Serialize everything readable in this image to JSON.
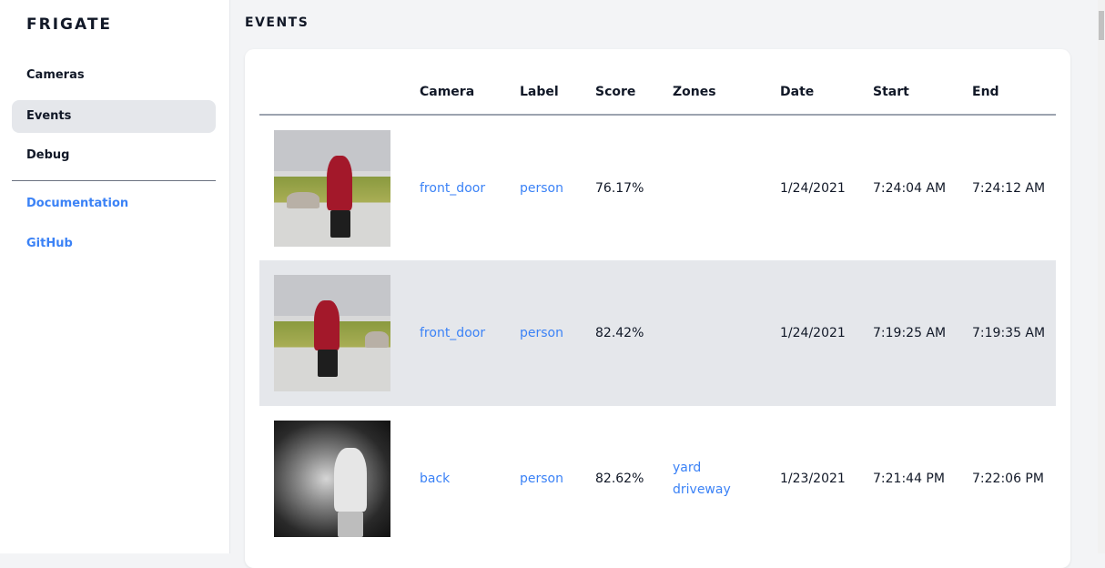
{
  "sidebar": {
    "brand": "FRIGATE",
    "items": [
      {
        "label": "Cameras"
      },
      {
        "label": "Events",
        "active": true
      },
      {
        "label": "Debug"
      }
    ],
    "links": [
      {
        "label": "Documentation"
      },
      {
        "label": "GitHub"
      }
    ]
  },
  "page": {
    "title": "EVENTS"
  },
  "table": {
    "headers": [
      "",
      "Camera",
      "Label",
      "Score",
      "Zones",
      "Date",
      "Start",
      "End"
    ],
    "rows": [
      {
        "camera": "front_door",
        "label": "person",
        "score": "76.17%",
        "zones": [
          "",
          ""
        ],
        "date": "1/24/2021",
        "start": "7:24:04 AM",
        "end": "7:24:12 AM"
      },
      {
        "camera": "front_door",
        "label": "person",
        "score": "82.42%",
        "zones": [
          "",
          ""
        ],
        "date": "1/24/2021",
        "start": "7:19:25 AM",
        "end": "7:19:35 AM"
      },
      {
        "camera": "back",
        "label": "person",
        "score": "82.62%",
        "zones": [
          "yard",
          "driveway"
        ],
        "date": "1/23/2021",
        "start": "7:21:44 PM",
        "end": "7:22:06 PM"
      }
    ]
  },
  "colors": {
    "accent": "#3b82f6",
    "active_bg": "#e5e7eb",
    "background": "#f3f4f6"
  }
}
